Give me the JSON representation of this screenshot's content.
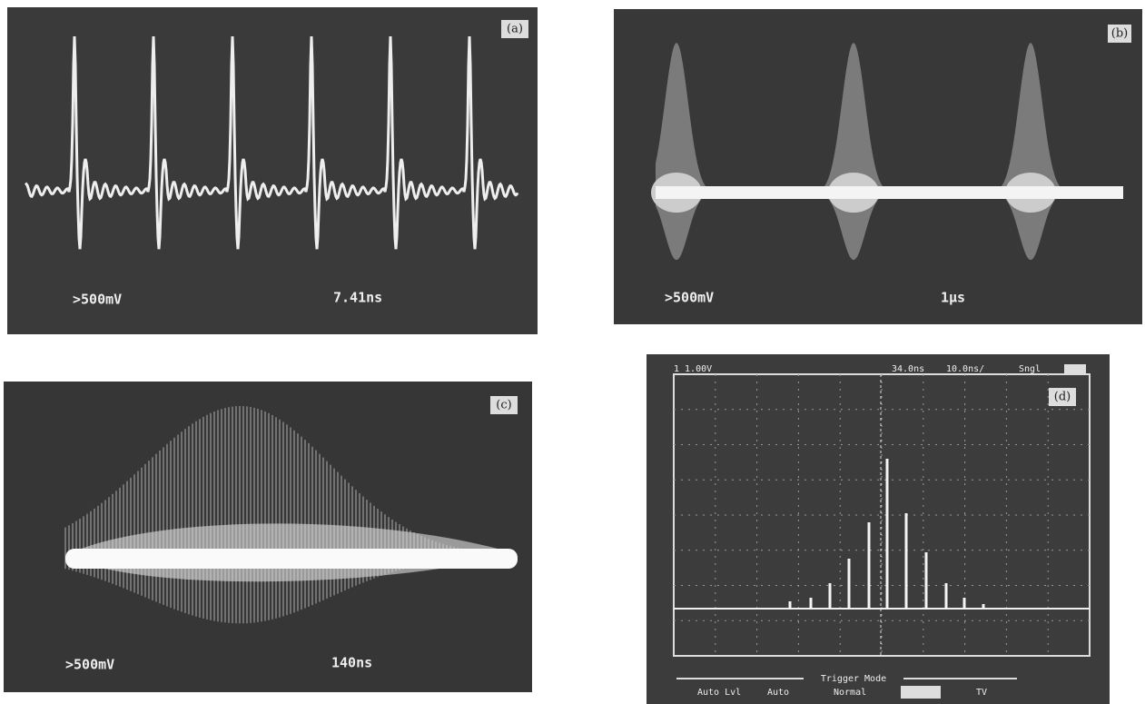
{
  "panels": [
    {
      "label": "(a)",
      "volts": ">500mV",
      "time": "7.41ns"
    },
    {
      "label": "(b)",
      "volts": ">500mV",
      "time": "1μs"
    },
    {
      "label": "(c)",
      "volts": ">500mV",
      "time": "140ns"
    },
    {
      "label": "(d)",
      "channel": "1 1.00V",
      "delay": "34.0ns",
      "timebase": "10.0ns/",
      "mode": "Sngl",
      "menu_title": "Trigger Mode",
      "menu": [
        "Auto Lvl",
        "Auto",
        "Normal",
        "TV"
      ]
    }
  ]
}
